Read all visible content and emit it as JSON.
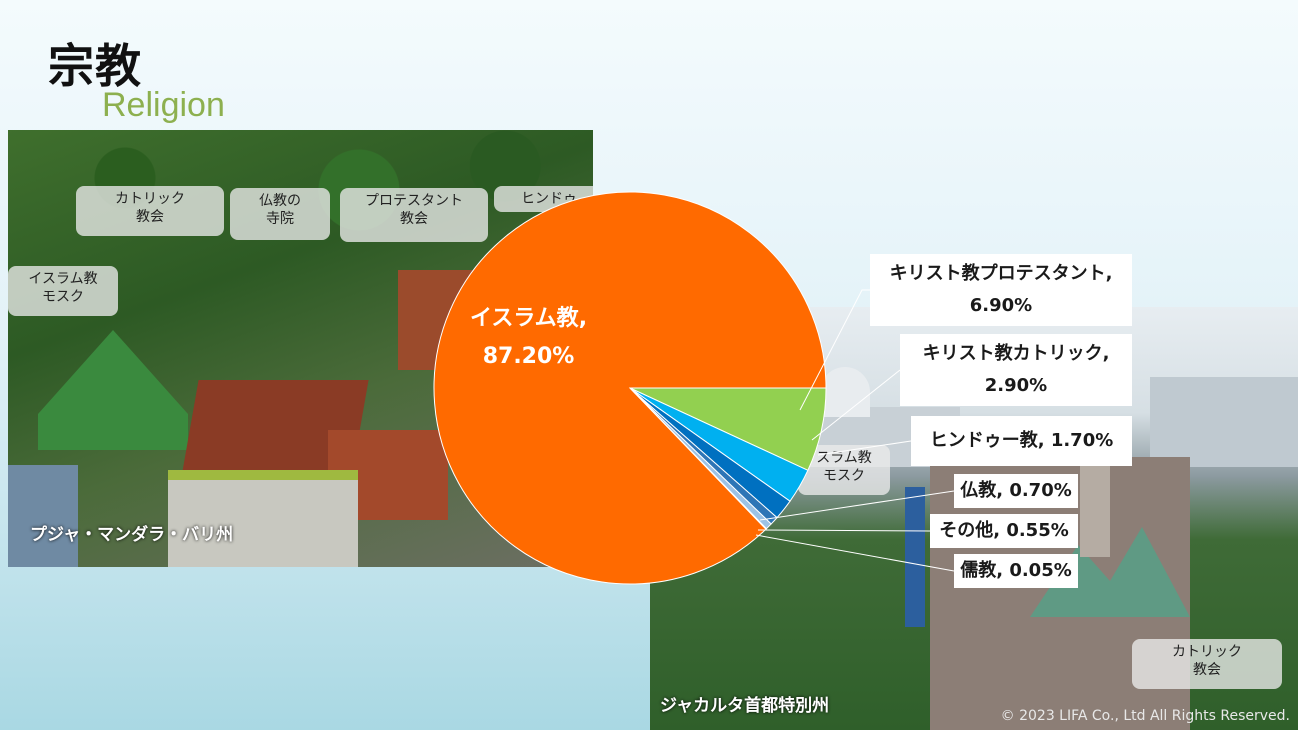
{
  "header": {
    "title": "宗教",
    "subtitle": "Religion"
  },
  "left_photo": {
    "labels": [
      "カトリック\n教会",
      "仏教の\n寺院",
      "プロテスタント\n教会",
      "ヒンドゥ",
      "イスラム教\nモスク"
    ],
    "caption": "プジャ・マンダラ・バリ州"
  },
  "right_photo": {
    "labels": [
      "スラム教\nモスク",
      "カトリック\n教会"
    ],
    "caption": "ジャカルタ首都特別州"
  },
  "chart_data": {
    "type": "pie",
    "categories": [
      "イスラム教",
      "キリスト教プロテスタント",
      "キリスト教カトリック",
      "ヒンドゥー教",
      "仏教",
      "その他",
      "儒教"
    ],
    "values": [
      87.2,
      6.9,
      2.9,
      1.7,
      0.7,
      0.55,
      0.05
    ],
    "value_labels": [
      "87.20%",
      "6.90%",
      "2.90%",
      "1.70%",
      "0.70%",
      "0.55%",
      "0.05%"
    ],
    "colors": [
      "#ff6a00",
      "#92d050",
      "#00b0f0",
      "#0070c0",
      "#2e75b6",
      "#9dc3e6",
      "#bdd7ee"
    ],
    "label_texts": [
      "イスラム教,\n87.20%",
      "キリスト教プロテスタント,\n6.90%",
      "キリスト教カトリック,\n2.90%",
      "ヒンドゥー教, 1.70%",
      "仏教, 0.70%",
      "その他, 0.55%",
      "儒教, 0.05%"
    ]
  },
  "footer": {
    "copyright": "© 2023 LIFA Co., Ltd All Rights Reserved."
  }
}
